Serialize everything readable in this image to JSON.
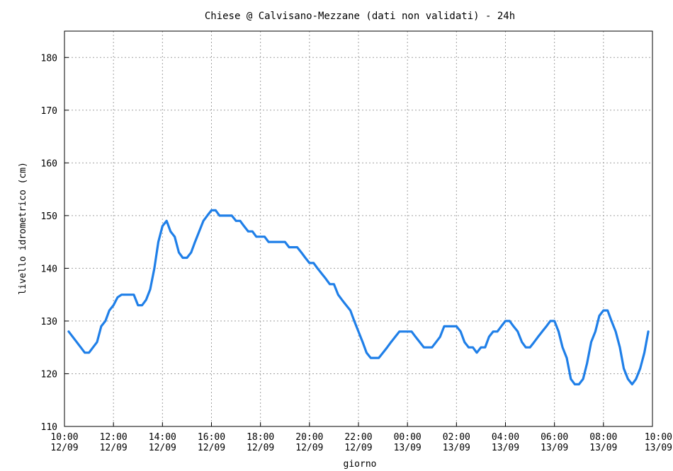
{
  "chart_data": {
    "type": "line",
    "title": "Chiese @ Calvisano-Mezzane (dati non validati) - 24h",
    "xlabel": "giorno",
    "ylabel": "livello idrometrico (cm)",
    "ylim": [
      110,
      185
    ],
    "y_ticks": [
      110,
      120,
      130,
      140,
      150,
      160,
      170,
      180
    ],
    "x_range_hours": [
      0,
      24
    ],
    "x_ticks": [
      {
        "hour": 0,
        "time": "10:00",
        "date": "12/09"
      },
      {
        "hour": 2,
        "time": "12:00",
        "date": "12/09"
      },
      {
        "hour": 4,
        "time": "14:00",
        "date": "12/09"
      },
      {
        "hour": 6,
        "time": "16:00",
        "date": "12/09"
      },
      {
        "hour": 8,
        "time": "18:00",
        "date": "12/09"
      },
      {
        "hour": 10,
        "time": "20:00",
        "date": "12/09"
      },
      {
        "hour": 12,
        "time": "22:00",
        "date": "12/09"
      },
      {
        "hour": 14,
        "time": "00:00",
        "date": "13/09"
      },
      {
        "hour": 16,
        "time": "02:00",
        "date": "13/09"
      },
      {
        "hour": 18,
        "time": "04:00",
        "date": "13/09"
      },
      {
        "hour": 20,
        "time": "06:00",
        "date": "13/09"
      },
      {
        "hour": 22,
        "time": "08:00",
        "date": "13/09"
      },
      {
        "hour": 24,
        "time": "10:00",
        "date": "13/09"
      }
    ],
    "grid": true,
    "series": [
      {
        "color": "#1f7fe8",
        "points": [
          [
            0.17,
            128
          ],
          [
            0.5,
            126
          ],
          [
            0.83,
            124
          ],
          [
            1.0,
            124
          ],
          [
            1.33,
            126
          ],
          [
            1.5,
            129
          ],
          [
            1.67,
            130
          ],
          [
            1.83,
            132
          ],
          [
            2.0,
            133
          ],
          [
            2.17,
            134.5
          ],
          [
            2.33,
            135
          ],
          [
            2.67,
            135
          ],
          [
            2.83,
            135
          ],
          [
            3.0,
            133
          ],
          [
            3.17,
            133
          ],
          [
            3.33,
            134
          ],
          [
            3.5,
            136
          ],
          [
            3.67,
            140
          ],
          [
            3.83,
            145
          ],
          [
            4.0,
            148
          ],
          [
            4.17,
            149
          ],
          [
            4.33,
            147
          ],
          [
            4.5,
            146
          ],
          [
            4.67,
            143
          ],
          [
            4.83,
            142
          ],
          [
            5.0,
            142
          ],
          [
            5.17,
            143
          ],
          [
            5.33,
            145
          ],
          [
            5.5,
            147
          ],
          [
            5.67,
            149
          ],
          [
            5.83,
            150
          ],
          [
            6.0,
            151
          ],
          [
            6.17,
            151
          ],
          [
            6.33,
            150
          ],
          [
            6.5,
            150
          ],
          [
            6.67,
            150
          ],
          [
            6.83,
            150
          ],
          [
            7.0,
            149
          ],
          [
            7.17,
            149
          ],
          [
            7.33,
            148
          ],
          [
            7.5,
            147
          ],
          [
            7.67,
            147
          ],
          [
            7.83,
            146
          ],
          [
            8.0,
            146
          ],
          [
            8.17,
            146
          ],
          [
            8.33,
            145
          ],
          [
            8.5,
            145
          ],
          [
            8.67,
            145
          ],
          [
            8.83,
            145
          ],
          [
            9.0,
            145
          ],
          [
            9.17,
            144
          ],
          [
            9.33,
            144
          ],
          [
            9.5,
            144
          ],
          [
            9.67,
            143
          ],
          [
            9.83,
            142
          ],
          [
            10.0,
            141
          ],
          [
            10.17,
            141
          ],
          [
            10.33,
            140
          ],
          [
            10.5,
            139
          ],
          [
            10.67,
            138
          ],
          [
            10.83,
            137
          ],
          [
            11.0,
            137
          ],
          [
            11.17,
            135
          ],
          [
            11.33,
            134
          ],
          [
            11.5,
            133
          ],
          [
            11.67,
            132
          ],
          [
            11.83,
            130
          ],
          [
            12.0,
            128
          ],
          [
            12.17,
            126
          ],
          [
            12.33,
            124
          ],
          [
            12.5,
            123
          ],
          [
            12.67,
            123
          ],
          [
            12.83,
            123
          ],
          [
            13.0,
            124
          ],
          [
            13.17,
            125
          ],
          [
            13.33,
            126
          ],
          [
            13.5,
            127
          ],
          [
            13.67,
            128
          ],
          [
            13.83,
            128
          ],
          [
            14.0,
            128
          ],
          [
            14.17,
            128
          ],
          [
            14.33,
            127
          ],
          [
            14.5,
            126
          ],
          [
            14.67,
            125
          ],
          [
            14.83,
            125
          ],
          [
            15.0,
            125
          ],
          [
            15.17,
            126
          ],
          [
            15.33,
            127
          ],
          [
            15.5,
            129
          ],
          [
            15.67,
            129
          ],
          [
            15.83,
            129
          ],
          [
            16.0,
            129
          ],
          [
            16.17,
            128
          ],
          [
            16.33,
            126
          ],
          [
            16.5,
            125
          ],
          [
            16.67,
            125
          ],
          [
            16.83,
            124
          ],
          [
            17.0,
            125
          ],
          [
            17.17,
            125
          ],
          [
            17.33,
            127
          ],
          [
            17.5,
            128
          ],
          [
            17.67,
            128
          ],
          [
            17.83,
            129
          ],
          [
            18.0,
            130
          ],
          [
            18.17,
            130
          ],
          [
            18.33,
            129
          ],
          [
            18.5,
            128
          ],
          [
            18.67,
            126
          ],
          [
            18.83,
            125
          ],
          [
            19.0,
            125
          ],
          [
            19.17,
            126
          ],
          [
            19.33,
            127
          ],
          [
            19.5,
            128
          ],
          [
            19.67,
            129
          ],
          [
            19.83,
            130
          ],
          [
            20.0,
            130
          ],
          [
            20.17,
            128
          ],
          [
            20.33,
            125
          ],
          [
            20.5,
            123
          ],
          [
            20.67,
            119
          ],
          [
            20.83,
            118
          ],
          [
            21.0,
            118
          ],
          [
            21.17,
            119
          ],
          [
            21.33,
            122
          ],
          [
            21.5,
            126
          ],
          [
            21.67,
            128
          ],
          [
            21.83,
            131
          ],
          [
            22.0,
            132
          ],
          [
            22.17,
            132
          ],
          [
            22.33,
            130
          ],
          [
            22.5,
            128
          ],
          [
            22.67,
            125
          ],
          [
            22.83,
            121
          ],
          [
            23.0,
            119
          ],
          [
            23.17,
            118
          ],
          [
            23.33,
            119
          ],
          [
            23.5,
            121
          ],
          [
            23.67,
            124
          ],
          [
            23.83,
            128
          ]
        ]
      }
    ]
  }
}
